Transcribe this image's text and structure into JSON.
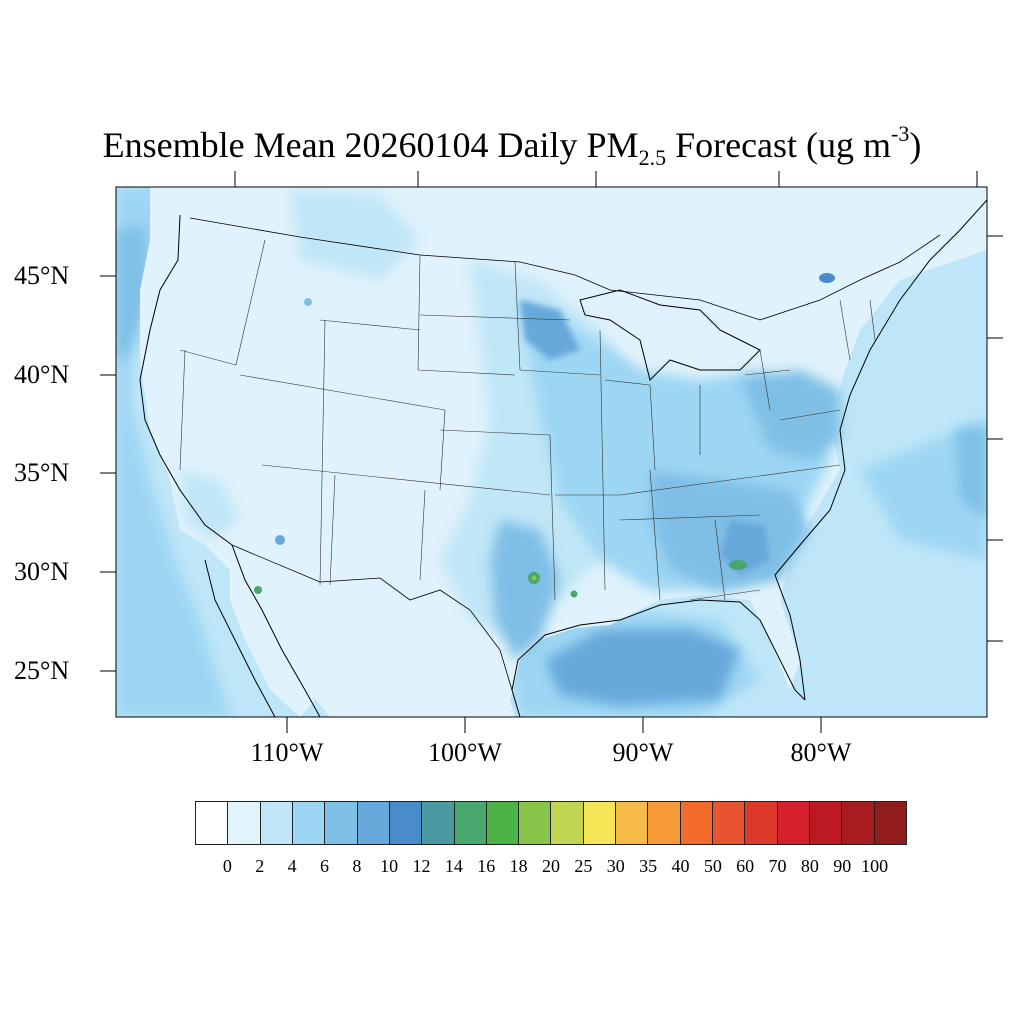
{
  "title": {
    "prefix": "Ensemble Mean 20260104 Daily PM",
    "sub": "2.5",
    "middle": " Forecast (ug m",
    "sup": "-3",
    "suffix": ")"
  },
  "latitude_labels": [
    "45°N",
    "40°N",
    "35°N",
    "30°N",
    "25°N"
  ],
  "longitude_labels": [
    "110°W",
    "100°W",
    "90°W",
    "80°W"
  ],
  "colorbar": {
    "colors": [
      "#ffffff",
      "#e1f3fb",
      "#c0e6f7",
      "#9dd6f3",
      "#7fbfe6",
      "#68a9dc",
      "#4a8bcb",
      "#4a9aa3",
      "#48a76d",
      "#4cb447",
      "#86c44a",
      "#c3d652",
      "#f6e657",
      "#f7bb49",
      "#f59939",
      "#f26b2a",
      "#e85330",
      "#de3a2b",
      "#d4202c",
      "#bb1a23",
      "#a81b1e",
      "#911c1c"
    ],
    "labels": [
      "0",
      "2",
      "4",
      "6",
      "8",
      "10",
      "12",
      "14",
      "16",
      "18",
      "20",
      "25",
      "30",
      "35",
      "40",
      "50",
      "60",
      "70",
      "80",
      "90",
      "100"
    ]
  },
  "map_colors": {
    "ocean": "#bee6f8",
    "land_low": "#e0f2fb",
    "level_4": "#c0e6f7",
    "level_6": "#9dd6f3",
    "level_8": "#7fbfe6",
    "level_10": "#68a9dc",
    "level_12": "#4a8bcb",
    "level_16": "#48a76d",
    "level_18": "#4cb447",
    "level_20": "#86c44a"
  }
}
